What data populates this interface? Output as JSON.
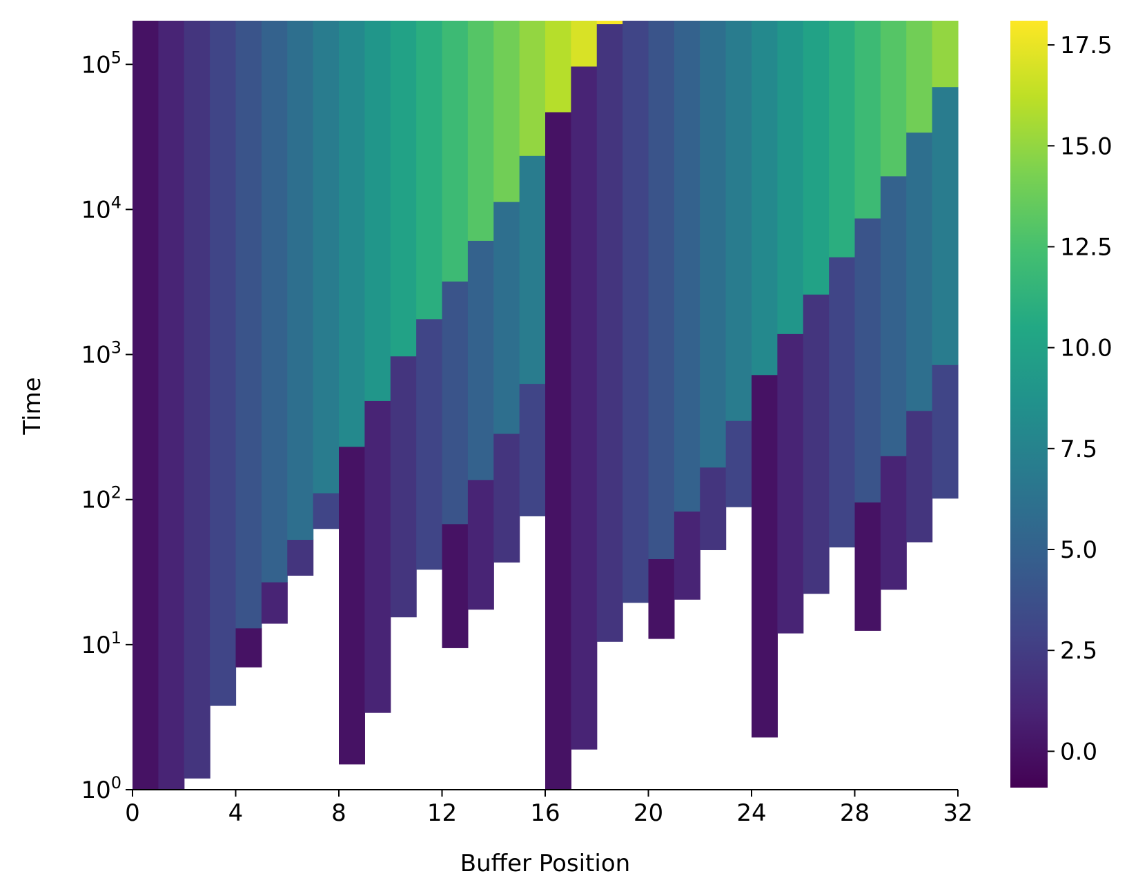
{
  "chart_data": {
    "type": "heatmap",
    "title": "",
    "xlabel": "Buffer Position",
    "ylabel": "Time",
    "x_range": [
      0,
      32
    ],
    "x_ticks": [
      0,
      4,
      8,
      12,
      16,
      20,
      24,
      28,
      32
    ],
    "y_scale": "log",
    "y_ticks": [
      {
        "value": 1,
        "base": "10",
        "exp": "0"
      },
      {
        "value": 10,
        "base": "10",
        "exp": "1"
      },
      {
        "value": 100,
        "base": "10",
        "exp": "2"
      },
      {
        "value": 1000,
        "base": "10",
        "exp": "3"
      },
      {
        "value": 10000,
        "base": "10",
        "exp": "4"
      },
      {
        "value": 100000,
        "base": "10",
        "exp": "5"
      }
    ],
    "y_max": 200000,
    "colormap": "viridis",
    "colorbar": {
      "vmin": -0.9,
      "vmax": 18.1,
      "ticks": [
        0.0,
        2.5,
        5.0,
        7.5,
        10.0,
        12.5,
        15.0,
        17.5
      ],
      "tick_labels": [
        "0.0",
        "2.5",
        "5.0",
        "7.5",
        "10.0",
        "12.5",
        "15.0",
        "17.5"
      ]
    },
    "grid": false,
    "note_cells": "each column lists stacked bands [t_start, t_end, value]; white = no data",
    "columns": [
      {
        "x": 0,
        "bands": [
          [
            1,
            200000,
            0
          ]
        ]
      },
      {
        "x": 1,
        "bands": [
          [
            1,
            200000,
            1
          ]
        ]
      },
      {
        "x": 2,
        "bands": [
          [
            1.2,
            200000,
            2
          ]
        ]
      },
      {
        "x": 3,
        "bands": [
          [
            3.8,
            200000,
            3
          ]
        ]
      },
      {
        "x": 4,
        "bands": [
          [
            7,
            13,
            0
          ],
          [
            13,
            200000,
            4
          ]
        ]
      },
      {
        "x": 5,
        "bands": [
          [
            14,
            27,
            1
          ],
          [
            27,
            200000,
            5
          ]
        ]
      },
      {
        "x": 6,
        "bands": [
          [
            30,
            53,
            2
          ],
          [
            53,
            200000,
            6
          ]
        ]
      },
      {
        "x": 7,
        "bands": [
          [
            63,
            111,
            3
          ],
          [
            111,
            200000,
            7
          ]
        ]
      },
      {
        "x": 8,
        "bands": [
          [
            1.5,
            232,
            0
          ],
          [
            232,
            200000,
            8
          ]
        ]
      },
      {
        "x": 9,
        "bands": [
          [
            3.4,
            480,
            1
          ],
          [
            480,
            200000,
            9
          ]
        ]
      },
      {
        "x": 10,
        "bands": [
          [
            15.5,
            975,
            2
          ],
          [
            975,
            200000,
            10
          ]
        ]
      },
      {
        "x": 11,
        "bands": [
          [
            33,
            1760,
            3
          ],
          [
            1760,
            200000,
            11
          ]
        ]
      },
      {
        "x": 12,
        "bands": [
          [
            9.5,
            68,
            0
          ],
          [
            68,
            3200,
            4
          ],
          [
            3200,
            200000,
            12
          ]
        ]
      },
      {
        "x": 13,
        "bands": [
          [
            17.5,
            137,
            1
          ],
          [
            137,
            6100,
            5
          ],
          [
            6100,
            200000,
            13
          ]
        ]
      },
      {
        "x": 14,
        "bands": [
          [
            37,
            285,
            2
          ],
          [
            285,
            11300,
            6
          ],
          [
            11300,
            200000,
            14
          ]
        ]
      },
      {
        "x": 15,
        "bands": [
          [
            77,
            630,
            3
          ],
          [
            630,
            23500,
            7
          ],
          [
            23500,
            200000,
            15
          ]
        ]
      },
      {
        "x": 16,
        "bands": [
          [
            1,
            47000,
            0
          ],
          [
            47000,
            200000,
            16
          ]
        ]
      },
      {
        "x": 17,
        "bands": [
          [
            1.9,
            97000,
            1
          ],
          [
            97000,
            200000,
            17
          ]
        ]
      },
      {
        "x": 18,
        "bands": [
          [
            10.5,
            190000,
            2
          ],
          [
            190000,
            200000,
            18
          ]
        ]
      },
      {
        "x": 19,
        "bands": [
          [
            19.5,
            200000,
            3
          ]
        ]
      },
      {
        "x": 20,
        "bands": [
          [
            11,
            39,
            0
          ],
          [
            39,
            200000,
            4
          ]
        ]
      },
      {
        "x": 21,
        "bands": [
          [
            20.5,
            83,
            1
          ],
          [
            83,
            200000,
            5
          ]
        ]
      },
      {
        "x": 22,
        "bands": [
          [
            45,
            167,
            2
          ],
          [
            167,
            200000,
            6
          ]
        ]
      },
      {
        "x": 23,
        "bands": [
          [
            89,
            350,
            3
          ],
          [
            350,
            200000,
            7
          ]
        ]
      },
      {
        "x": 24,
        "bands": [
          [
            2.3,
            725,
            0
          ],
          [
            725,
            200000,
            8
          ]
        ]
      },
      {
        "x": 25,
        "bands": [
          [
            12,
            1390,
            1
          ],
          [
            1390,
            200000,
            9
          ]
        ]
      },
      {
        "x": 26,
        "bands": [
          [
            22.5,
            2600,
            2
          ],
          [
            2600,
            200000,
            10
          ]
        ]
      },
      {
        "x": 27,
        "bands": [
          [
            47,
            4700,
            3
          ],
          [
            4700,
            200000,
            11
          ]
        ]
      },
      {
        "x": 28,
        "bands": [
          [
            12.5,
            96,
            0
          ],
          [
            96,
            8700,
            4
          ],
          [
            8700,
            200000,
            12
          ]
        ]
      },
      {
        "x": 29,
        "bands": [
          [
            24,
            200,
            1
          ],
          [
            200,
            17000,
            5
          ],
          [
            17000,
            200000,
            13
          ]
        ]
      },
      {
        "x": 30,
        "bands": [
          [
            51,
            410,
            2
          ],
          [
            410,
            34000,
            6
          ],
          [
            34000,
            200000,
            14
          ]
        ]
      },
      {
        "x": 31,
        "bands": [
          [
            102,
            850,
            3
          ],
          [
            850,
            70000,
            7
          ],
          [
            70000,
            200000,
            15
          ]
        ]
      }
    ]
  }
}
